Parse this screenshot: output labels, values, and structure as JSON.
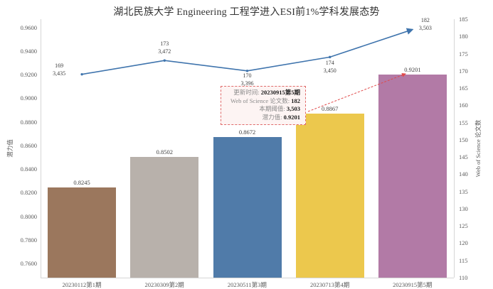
{
  "title": "湖北民族大学 Engineering 工程学进入ESI前1%学科发展态势",
  "chart_data": {
    "type": "combo: bar + line, dual axis",
    "categories": [
      "20230112第1期",
      "20230309第2期",
      "20230511第3期",
      "20230713第4期",
      "20230915第5期"
    ],
    "series": [
      {
        "name": "潜力值",
        "type": "bar",
        "axis": "left",
        "values": [
          0.8245,
          0.8502,
          0.8672,
          0.8867,
          0.9201
        ],
        "labels": [
          "0.8245",
          "0.8502",
          "0.8672",
          "0.8867",
          "0.9201"
        ],
        "colors": [
          "#9b775d",
          "#b8b1ab",
          "#507ba9",
          "#ecc84d",
          "#b27aa6"
        ]
      },
      {
        "name": "Web of Science 论文数",
        "type": "line",
        "axis": "right",
        "values": [
          169,
          173,
          170,
          174,
          182
        ],
        "thresholds": [
          "3,435",
          "3,472",
          "3,396",
          "3,450",
          "3,503"
        ],
        "point_labels": [
          [
            "169",
            "3,435"
          ],
          [
            "173",
            "3,472"
          ],
          [
            "170",
            "3,396"
          ],
          [
            "174",
            "3,450"
          ],
          [
            "182",
            "3,503"
          ]
        ],
        "color": "#3f74ad"
      }
    ],
    "left_axis": {
      "title": "潜力值",
      "min": 0.748,
      "max": 0.967,
      "ticks": [
        "0.7600",
        "0.7800",
        "0.8000",
        "0.8200",
        "0.8400",
        "0.8600",
        "0.8800",
        "0.9000",
        "0.9200",
        "0.9400",
        "0.9600"
      ]
    },
    "right_axis": {
      "title": "Web of Science 论文数",
      "min": 110,
      "max": 185,
      "ticks": [
        "110",
        "115",
        "120",
        "125",
        "130",
        "135",
        "140",
        "145",
        "150",
        "155",
        "160",
        "165",
        "170",
        "175",
        "180",
        "185"
      ]
    },
    "grid": false,
    "legend": "none",
    "annotation_color": "#e04b4b"
  },
  "tooltip": {
    "rows": [
      {
        "label": "更新时间: ",
        "value": "20230915第5期"
      },
      {
        "label": "Web of Science 论文数: ",
        "value": "182"
      },
      {
        "label": "本期阈值: ",
        "value": "3,503"
      },
      {
        "label": "潜力值: ",
        "value": "0.9201"
      }
    ]
  }
}
